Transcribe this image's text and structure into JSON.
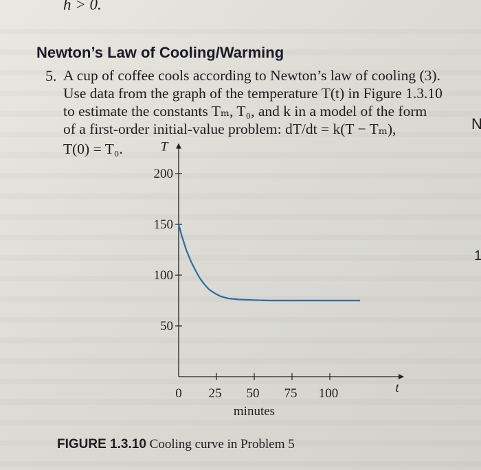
{
  "top_fragment": {
    "text": "h > 0."
  },
  "section": {
    "heading": "Newton’s Law of Cooling/Warming"
  },
  "problem": {
    "number": "5.",
    "lines": [
      "A cup of coffee cools according to Newton’s law of cooling (3).",
      "Use data from the graph of the temperature T(t) in Figure 1.3.10",
      "to estimate the constants Tₘ, T₀, and k in a model of the form",
      "of a first-order initial-value problem: dT/dt = k(T − Tₘ),",
      "T(0) = T₀."
    ]
  },
  "margin_fragments": {
    "right_top": "N",
    "right_mid": "1"
  },
  "figure": {
    "caption_label": "FIGURE 1.3.10",
    "caption_text": "Cooling curve in Problem 5"
  },
  "chart_data": {
    "type": "line",
    "xlabel": "minutes",
    "ylabel": "",
    "x_axis_symbol": "t",
    "y_axis_symbol": "T",
    "xlim": [
      0,
      150
    ],
    "ylim": [
      0,
      230
    ],
    "x_ticks": [
      0,
      25,
      50,
      75,
      100
    ],
    "y_ticks": [
      50,
      100,
      150,
      200
    ],
    "x_tick_labels": [
      "0",
      "25",
      "50",
      "75",
      "100"
    ],
    "y_tick_labels": [
      "50",
      "100",
      "150",
      "200"
    ],
    "grid": false,
    "series": [
      {
        "color": "#2f6aa3",
        "x": [
          0,
          2,
          5,
          8,
          11,
          14,
          17,
          20,
          24,
          28,
          33,
          40,
          50,
          60,
          75,
          90,
          105,
          120
        ],
        "y": [
          150,
          139,
          125,
          114,
          105,
          97,
          91,
          86,
          82,
          79,
          77,
          76,
          75.5,
          75,
          75,
          75,
          75,
          75
        ]
      }
    ]
  }
}
